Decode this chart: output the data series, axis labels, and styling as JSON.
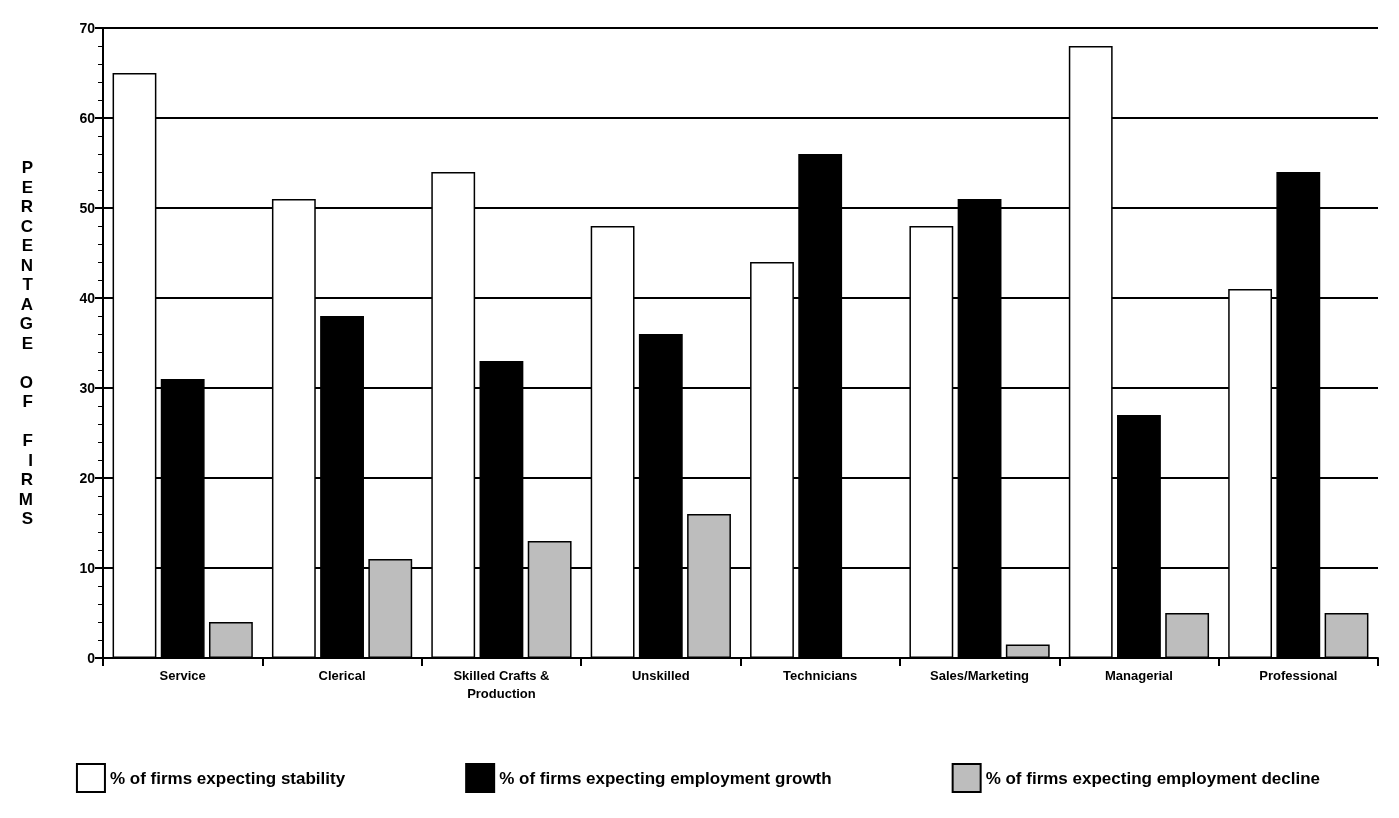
{
  "chart_data": {
    "type": "bar",
    "ylabel": "PERCENTAGE OF FIRMS",
    "categories": [
      "Service",
      "Clerical",
      "Skilled Crafts &\nProduction",
      "Unskilled",
      "Technicians",
      "Sales/Marketing",
      "Managerial",
      "Professional"
    ],
    "series": [
      {
        "name": "% of firms expecting stability",
        "color": "#ffffff",
        "values": [
          65,
          51,
          54,
          48,
          44,
          48,
          68,
          41
        ]
      },
      {
        "name": "% of firms expecting employment growth",
        "color": "#000000",
        "values": [
          31,
          38,
          33,
          36,
          56,
          51,
          27,
          54
        ]
      },
      {
        "name": "% of firms expecting employment decline",
        "color": "#bdbdbd",
        "values": [
          4,
          11,
          13,
          16,
          null,
          1.5,
          5,
          5
        ]
      }
    ],
    "ylim": [
      0,
      70
    ],
    "yticks": [
      0,
      10,
      20,
      30,
      40,
      50,
      60,
      70
    ],
    "grid": "y",
    "legend": "bottom"
  }
}
